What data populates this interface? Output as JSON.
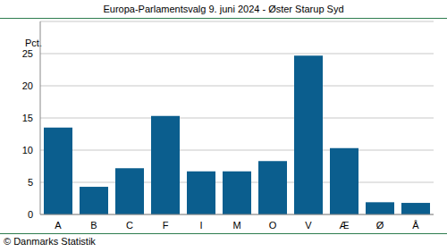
{
  "chart_data": {
    "type": "bar",
    "title": "Europa-Parlamentsvalg 9. juni 2024 - Øster Starup Syd",
    "y_label": "Pct.",
    "annotations": [
      "© Danmarks Statistik"
    ],
    "categories": [
      "A",
      "B",
      "C",
      "F",
      "I",
      "M",
      "O",
      "V",
      "Æ",
      "Ø",
      "Å"
    ],
    "values": [
      13.5,
      4.3,
      7.2,
      15.3,
      6.7,
      6.7,
      8.3,
      24.7,
      10.3,
      1.9,
      1.8
    ],
    "color": "#0b5e8e",
    "ylim": [
      0,
      30
    ],
    "yticks": [
      0,
      5,
      10,
      15,
      20,
      25
    ],
    "grid": true
  }
}
